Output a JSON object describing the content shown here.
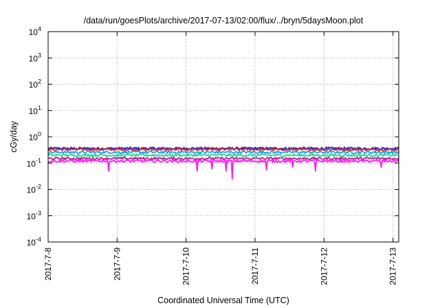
{
  "chart_data": {
    "type": "line",
    "title": "/data/run/goesPlots/archive/2017-07-13/02:00/flux/../bryn/5daysMoon.plot",
    "xlabel": "Coordinated Universal Time (UTC)",
    "ylabel": "cGy/day",
    "y_scale": "log",
    "ylim": [
      0.0001,
      10000
    ],
    "xlim": [
      "2017-07-08T00:00",
      "2017-07-13T02:00"
    ],
    "x_ticks": [
      "2017-7-8",
      "2017-7-9",
      "2017-7-10",
      "2017-7-11",
      "2017-7-12",
      "2017-7-13"
    ],
    "y_ticks": [
      {
        "base": "10",
        "exp": "-4"
      },
      {
        "base": "10",
        "exp": "-3"
      },
      {
        "base": "10",
        "exp": "-2"
      },
      {
        "base": "10",
        "exp": "-1"
      },
      {
        "base": "10",
        "exp": "0"
      },
      {
        "base": "10",
        "exp": "1"
      },
      {
        "base": "10",
        "exp": "2"
      },
      {
        "base": "10",
        "exp": "3"
      },
      {
        "base": "10",
        "exp": "4"
      }
    ],
    "grid": true,
    "legend": "none",
    "series": [
      {
        "color": "#2b2bd6",
        "baseline": 0.36,
        "values": [
          [
            "2017-07-08T00:00",
            0.36
          ],
          [
            "2017-07-08T06:00",
            0.34
          ],
          [
            "2017-07-08T12:00",
            0.37
          ],
          [
            "2017-07-08T18:00",
            0.35
          ],
          [
            "2017-07-09T00:00",
            0.36
          ],
          [
            "2017-07-09T06:00",
            0.37
          ],
          [
            "2017-07-09T12:00",
            0.35
          ],
          [
            "2017-07-09T18:00",
            0.36
          ],
          [
            "2017-07-10T00:00",
            0.36
          ],
          [
            "2017-07-10T06:00",
            0.34
          ],
          [
            "2017-07-10T12:00",
            0.36
          ],
          [
            "2017-07-10T18:00",
            0.35
          ],
          [
            "2017-07-11T00:00",
            0.37
          ],
          [
            "2017-07-11T06:00",
            0.36
          ],
          [
            "2017-07-11T12:00",
            0.35
          ],
          [
            "2017-07-11T18:00",
            0.36
          ],
          [
            "2017-07-12T00:00",
            0.36
          ],
          [
            "2017-07-12T06:00",
            0.35
          ],
          [
            "2017-07-12T12:00",
            0.37
          ],
          [
            "2017-07-12T18:00",
            0.35
          ],
          [
            "2017-07-13T00:00",
            0.36
          ],
          [
            "2017-07-13T02:00",
            0.36
          ]
        ]
      },
      {
        "color": "#d62b2b",
        "baseline": 0.33,
        "values": [
          [
            "2017-07-08T00:00",
            0.33
          ],
          [
            "2017-07-09T00:00",
            0.33
          ],
          [
            "2017-07-10T00:00",
            0.32
          ],
          [
            "2017-07-11T00:00",
            0.34
          ],
          [
            "2017-07-12T00:00",
            0.33
          ],
          [
            "2017-07-13T02:00",
            0.33
          ]
        ]
      },
      {
        "color": "#1aa3e6",
        "baseline": 0.26,
        "values": [
          [
            "2017-07-08T00:00",
            0.26
          ],
          [
            "2017-07-09T00:00",
            0.26
          ],
          [
            "2017-07-10T00:00",
            0.25
          ],
          [
            "2017-07-11T00:00",
            0.26
          ],
          [
            "2017-07-12T00:00",
            0.26
          ],
          [
            "2017-07-13T02:00",
            0.26
          ]
        ]
      },
      {
        "color": "#2fd19a",
        "baseline": 0.2,
        "values": [
          [
            "2017-07-08T00:00",
            0.2
          ],
          [
            "2017-07-09T00:00",
            0.2
          ],
          [
            "2017-07-10T00:00",
            0.2
          ],
          [
            "2017-07-11T00:00",
            0.2
          ],
          [
            "2017-07-12T00:00",
            0.2
          ],
          [
            "2017-07-13T02:00",
            0.2
          ]
        ]
      },
      {
        "color": "#c01a8a",
        "baseline": 0.15,
        "values": [
          [
            "2017-07-08T00:00",
            0.15
          ],
          [
            "2017-07-09T00:00",
            0.15
          ],
          [
            "2017-07-10T00:00",
            0.15
          ],
          [
            "2017-07-11T00:00",
            0.15
          ],
          [
            "2017-07-12T00:00",
            0.15
          ],
          [
            "2017-07-13T02:00",
            0.15
          ]
        ]
      },
      {
        "color": "#ff1aff",
        "baseline": 0.12,
        "values": [
          [
            "2017-07-08T00:00",
            0.12
          ],
          [
            "2017-07-08T21:00",
            0.05
          ],
          [
            "2017-07-09T00:00",
            0.12
          ],
          [
            "2017-07-10T04:00",
            0.05
          ],
          [
            "2017-07-10T06:00",
            0.12
          ],
          [
            "2017-07-10T09:00",
            0.06
          ],
          [
            "2017-07-10T11:00",
            0.12
          ],
          [
            "2017-07-10T14:00",
            0.05
          ],
          [
            "2017-07-10T15:00",
            0.12
          ],
          [
            "2017-07-10T16:00",
            0.025
          ],
          [
            "2017-07-10T17:00",
            0.12
          ],
          [
            "2017-07-11T04:00",
            0.055
          ],
          [
            "2017-07-11T05:00",
            0.12
          ],
          [
            "2017-07-11T13:00",
            0.07
          ],
          [
            "2017-07-11T14:00",
            0.12
          ],
          [
            "2017-07-11T21:00",
            0.05
          ],
          [
            "2017-07-11T22:00",
            0.12
          ],
          [
            "2017-07-12T20:00",
            0.07
          ],
          [
            "2017-07-12T21:00",
            0.12
          ],
          [
            "2017-07-13T02:00",
            0.12
          ]
        ]
      }
    ]
  }
}
